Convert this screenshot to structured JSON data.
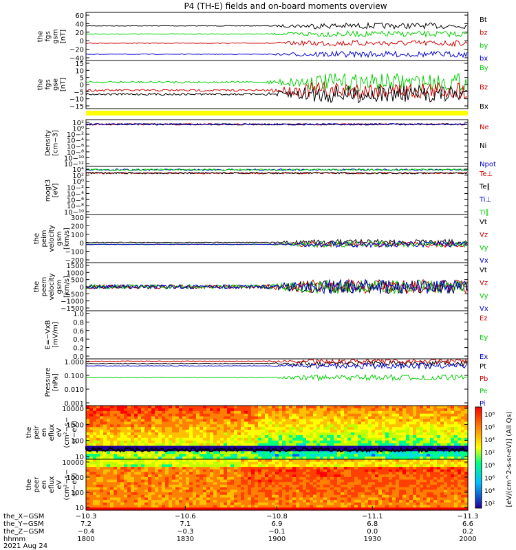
{
  "title": "P4 (TH-E) fields and on-board moments overview",
  "colors": {
    "black": "#000000",
    "red": "#d00000",
    "green": "#00d000",
    "blue": "#0000d0",
    "yellow": "#ffff00"
  },
  "chart_data": [
    {
      "id": "fgs_gsm",
      "type": "line",
      "ylabel": [
        "the",
        "fgs",
        "gsm",
        "[nT]"
      ],
      "yticks": [
        "60",
        "40",
        "20",
        "0",
        "−20",
        "−40"
      ],
      "series": [
        {
          "name": "Bt",
          "color": "black",
          "level": 0.72
        },
        {
          "name": "bz",
          "color": "red",
          "level": 0.36
        },
        {
          "name": "by",
          "color": "green",
          "level": 0.55
        },
        {
          "name": "bx",
          "color": "blue",
          "level": 0.13
        }
      ]
    },
    {
      "id": "fgs_gse",
      "type": "line",
      "ylabel": [
        "the",
        "fgs",
        "gse",
        "[nT]"
      ],
      "yticks": [
        "15",
        "10",
        "5",
        "0",
        "−5",
        "−10",
        "−15"
      ],
      "series": [
        {
          "name": "By",
          "color": "green",
          "level": 0.55
        },
        {
          "name": "Bz",
          "color": "red",
          "level": 0.38
        },
        {
          "name": "Bx",
          "color": "black",
          "level": 0.3
        }
      ]
    },
    {
      "id": "density",
      "type": "line",
      "ylabel": [
        "Density",
        "[cm−3]"
      ],
      "yticks": [
        "10²",
        "10⁰",
        "10−²",
        "10−⁴",
        "10−⁶",
        "10−⁸",
        "10−¹⁰",
        "10−¹²"
      ],
      "series": [
        {
          "name": "Ne",
          "color": "red",
          "level": 0.9
        },
        {
          "name": "Ni",
          "color": "black",
          "level": 0.9
        },
        {
          "name": "Npot",
          "color": "blue",
          "level": 0.9
        }
      ]
    },
    {
      "id": "temperature",
      "type": "line",
      "ylabel": [
        "mogt3",
        "[eV]"
      ],
      "yticks": [
        "10⁴",
        "10²",
        "10⁰",
        "10−²",
        "10−⁴",
        "10−⁶",
        "10−⁸",
        "10−¹⁰"
      ],
      "series": [
        {
          "name": "Te⊥",
          "color": "red",
          "level": 0.86
        },
        {
          "name": "Te∥",
          "color": "black",
          "level": 0.86
        },
        {
          "name": "Ti⊥",
          "color": "blue",
          "level": 0.93
        },
        {
          "name": "Ti∥",
          "color": "green",
          "level": 0.93
        }
      ]
    },
    {
      "id": "peim_velocity",
      "type": "line",
      "ylabel": [
        "the",
        "peim",
        "velocity",
        "gsm",
        "[km/s]"
      ],
      "yticks": [
        "300",
        "200",
        "100",
        "0",
        "−100",
        "−200"
      ],
      "series": [
        {
          "name": "Vt",
          "color": "black",
          "level": 0.42
        },
        {
          "name": "Vz",
          "color": "red",
          "level": 0.38
        },
        {
          "name": "Vy",
          "color": "green",
          "level": 0.38
        },
        {
          "name": "Vx",
          "color": "blue",
          "level": 0.38
        }
      ]
    },
    {
      "id": "peem_velocity",
      "type": "line",
      "ylabel": [
        "the",
        "peem",
        "velocity",
        "gsm",
        "[km/s]"
      ],
      "yticks": [
        "1500",
        "1000",
        "500",
        "0",
        "−500",
        "−1000",
        "−1500"
      ],
      "series": [
        {
          "name": "Vt",
          "color": "black",
          "level": 0.5
        },
        {
          "name": "Vz",
          "color": "red",
          "level": 0.5
        },
        {
          "name": "Vy",
          "color": "green",
          "level": 0.5
        },
        {
          "name": "Vx",
          "color": "blue",
          "level": 0.5
        }
      ]
    },
    {
      "id": "efield",
      "type": "line",
      "ylabel": [
        "E=−VxB",
        "[mV/m]"
      ],
      "yticks": [
        "1.0",
        "0.8",
        "0.6",
        "0.4",
        "0.2",
        "0.0"
      ],
      "series": [
        {
          "name": "Ez",
          "color": "red",
          "level": null
        },
        {
          "name": "Ey",
          "color": "green",
          "level": null
        },
        {
          "name": "Ex",
          "color": "blue",
          "level": null
        }
      ]
    },
    {
      "id": "pressure",
      "type": "line",
      "ylabel": [
        "Pressure",
        "[nPa]"
      ],
      "yticks": [
        "1.000",
        "0.100",
        "0.010",
        "0.001"
      ],
      "series": [
        {
          "name": "Pt",
          "color": "black",
          "level": 0.9
        },
        {
          "name": "Pb",
          "color": "red",
          "level": 0.95
        },
        {
          "name": "Pe",
          "color": "green",
          "level": 0.6
        },
        {
          "name": "Pi",
          "color": "blue",
          "level": 0.85
        }
      ]
    },
    {
      "id": "peir_eflux",
      "type": "heatmap",
      "ylabel": [
        "the",
        "peir",
        "en",
        "eflux",
        "eV",
        "(cm²−s−",
        "sr−eV)"
      ],
      "yticks": [
        "10000",
        "1000",
        "100",
        "10"
      ]
    },
    {
      "id": "peer_eflux",
      "type": "heatmap",
      "ylabel": [
        "the",
        "peer",
        "en",
        "eflux",
        "eV",
        "(cm²−s−",
        "sr−eV)"
      ],
      "yticks": [
        "10000",
        "1000",
        "100",
        "10"
      ]
    }
  ],
  "colorbar": {
    "label": "[eV/(cm^2-s-sr-eV)] (All Qs)",
    "ticks": [
      "10⁸",
      "10⁶",
      "10⁴",
      "10²",
      "10⁸",
      "10⁶",
      "10⁴",
      "10²"
    ]
  },
  "x_axis": {
    "rows": [
      {
        "label": "the_X−GSM",
        "values": [
          "−10.3",
          "−10.6",
          "−10.8",
          "−11.1",
          "−11.3"
        ]
      },
      {
        "label": "the_Y−GSM",
        "values": [
          "7.2",
          "7.1",
          "6.9",
          "6.8",
          "6.6"
        ]
      },
      {
        "label": "the_Z−GSM",
        "values": [
          "−0.4",
          "−0.3",
          "−0.1",
          "0.0",
          "0.2"
        ]
      },
      {
        "label": "hhmm",
        "values": [
          "1800",
          "1830",
          "1900",
          "1930",
          "2000"
        ]
      }
    ],
    "date": "2021 Aug 24"
  }
}
